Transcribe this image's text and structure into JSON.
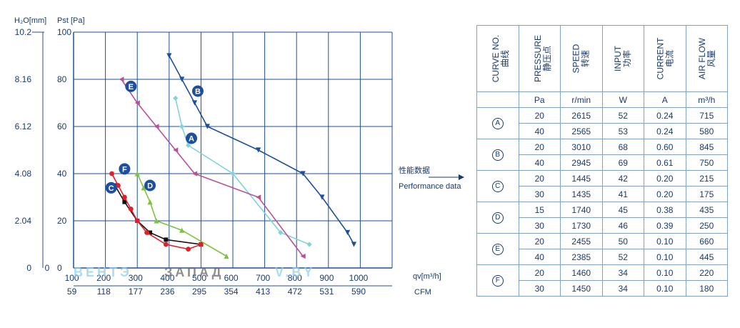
{
  "chart_data": {
    "type": "line",
    "y_axis_left_title": "H₂O[mm]",
    "y_axis_right_title": "Pst [Pa]",
    "y_ticks_h2o": [
      "0",
      "2.04",
      "4.08",
      "6.12",
      "8.16",
      "10.2"
    ],
    "y_ticks_pa": [
      "0",
      "20",
      "40",
      "60",
      "80",
      "100"
    ],
    "ylim": [
      0,
      100
    ],
    "x_ticks_m3h": [
      "100",
      "200",
      "300",
      "400",
      "500",
      "600",
      "700",
      "800",
      "900",
      "1000"
    ],
    "x_ticks_cfm": [
      "59",
      "118",
      "177",
      "236",
      "295",
      "354",
      "413",
      "472",
      "531",
      "590"
    ],
    "x_zero_label": "0",
    "xlim": [
      0,
      1000
    ],
    "x_unit_m3h": "qv[m³/h]",
    "x_unit_cfm": "CFM",
    "series": [
      {
        "name": "A",
        "color": "#7fd3dc",
        "marker": "diamond",
        "x": [
          320,
          340,
          360,
          500,
          650,
          740
        ],
        "y": [
          72,
          60,
          52,
          40,
          15,
          10
        ]
      },
      {
        "name": "B",
        "color": "#1f4f9a",
        "marker": "triangle-down",
        "x": [
          300,
          340,
          380,
          420,
          580,
          720,
          780,
          860,
          880
        ],
        "y": [
          90,
          80,
          70,
          60,
          50,
          40,
          30,
          15,
          10
        ]
      },
      {
        "name": "C",
        "color": "#111111",
        "marker": "square",
        "x": [
          130,
          160,
          200,
          240,
          290,
          400
        ],
        "y": [
          35,
          28,
          20,
          15,
          12,
          10
        ]
      },
      {
        "name": "D",
        "color": "#7dc43c",
        "marker": "triangle-up",
        "x": [
          200,
          220,
          240,
          260,
          340,
          480
        ],
        "y": [
          40,
          34,
          28,
          20,
          16,
          5
        ]
      },
      {
        "name": "E",
        "color": "#b8509a",
        "marker": "triangle-left",
        "x": [
          150,
          200,
          260,
          320,
          380,
          580,
          720
        ],
        "y": [
          80,
          70,
          60,
          50,
          40,
          30,
          5
        ]
      },
      {
        "name": "F",
        "color": "#e41e26",
        "marker": "circle",
        "x": [
          120,
          140,
          160,
          180,
          200,
          230,
          290,
          360,
          400
        ],
        "y": [
          40,
          35,
          30,
          25,
          20,
          15,
          10,
          8,
          10
        ]
      }
    ],
    "curve_labels": [
      {
        "id": "A",
        "text": "A",
        "x": 370,
        "y": 55
      },
      {
        "id": "B",
        "text": "B",
        "x": 390,
        "y": 75
      },
      {
        "id": "C",
        "text": "C",
        "x": 118,
        "y": 34
      },
      {
        "id": "D",
        "text": "D",
        "x": 240,
        "y": 35
      },
      {
        "id": "E",
        "text": "E",
        "x": 180,
        "y": 77
      },
      {
        "id": "F",
        "text": "F",
        "x": 160,
        "y": 42
      }
    ],
    "grid": true
  },
  "annotation": {
    "line1": "性能数据",
    "line2": "Performance data"
  },
  "watermark": {
    "part1": "ВЕНТЭ",
    "part2": "ЗАПАД",
    "part3": "V.BY"
  },
  "table": {
    "headers": [
      {
        "en": "CURVE NO.",
        "cn": "曲线"
      },
      {
        "en": "PRESSURE",
        "cn": "静压点"
      },
      {
        "en": "SPEED",
        "cn": "转速"
      },
      {
        "en": "INPUT",
        "cn": "功率"
      },
      {
        "en": "CURRENT",
        "cn": "电流"
      },
      {
        "en": "AIR FLOW",
        "cn": "风量"
      }
    ],
    "units": [
      "Pa",
      "r/min",
      "W",
      "A",
      "m³/h"
    ],
    "rows": [
      {
        "curve": "A",
        "data": [
          [
            "20",
            "2615",
            "52",
            "0.24",
            "715"
          ],
          [
            "40",
            "2565",
            "53",
            "0.24",
            "580"
          ]
        ]
      },
      {
        "curve": "B",
        "data": [
          [
            "20",
            "3010",
            "68",
            "0.60",
            "845"
          ],
          [
            "40",
            "2945",
            "69",
            "0.61",
            "750"
          ]
        ]
      },
      {
        "curve": "C",
        "data": [
          [
            "20",
            "1445",
            "42",
            "0.20",
            "215"
          ],
          [
            "30",
            "1435",
            "41",
            "0.20",
            "175"
          ]
        ]
      },
      {
        "curve": "D",
        "data": [
          [
            "15",
            "1740",
            "45",
            "0.38",
            "435"
          ],
          [
            "30",
            "1730",
            "46",
            "0.39",
            "250"
          ]
        ]
      },
      {
        "curve": "E",
        "data": [
          [
            "20",
            "2455",
            "50",
            "0.10",
            "660"
          ],
          [
            "40",
            "2385",
            "52",
            "0.10",
            "445"
          ]
        ]
      },
      {
        "curve": "F",
        "data": [
          [
            "20",
            "1460",
            "34",
            "0.10",
            "220"
          ],
          [
            "30",
            "1450",
            "34",
            "0.10",
            "180"
          ]
        ]
      }
    ]
  }
}
